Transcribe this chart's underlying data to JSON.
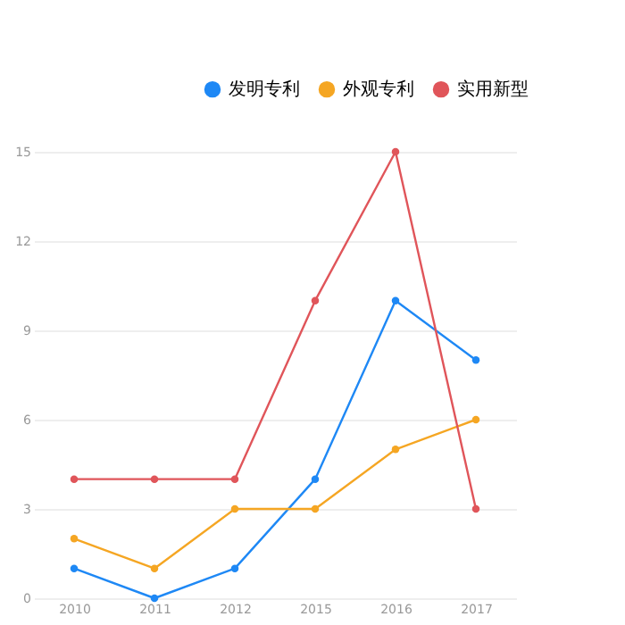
{
  "chart_data": {
    "type": "line",
    "categories": [
      "2010",
      "2011",
      "2012",
      "2015",
      "2016",
      "2017"
    ],
    "series": [
      {
        "name": "发明专利",
        "color": "#1e88f5",
        "values": [
          1,
          0,
          1,
          4,
          10,
          8
        ]
      },
      {
        "name": "外观专利",
        "color": "#f5a623",
        "values": [
          2,
          1,
          3,
          3,
          5,
          6
        ]
      },
      {
        "name": "实用新型",
        "color": "#e0555a",
        "values": [
          4,
          4,
          4,
          10,
          15,
          3
        ]
      }
    ],
    "ylim": [
      0,
      15
    ],
    "yticks": [
      0,
      3,
      6,
      9,
      12,
      15
    ],
    "grid": "y",
    "legend": "top right",
    "marker": "circle",
    "line_style": "solid"
  }
}
